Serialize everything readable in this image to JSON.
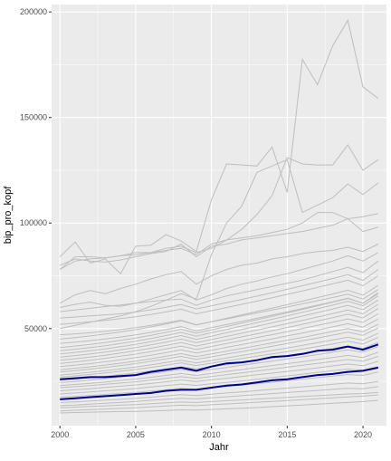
{
  "chart_data": {
    "type": "line",
    "title": "",
    "xlabel": "Jahr",
    "ylabel": "bip_pro_kopf",
    "x": [
      2000,
      2001,
      2002,
      2003,
      2004,
      2005,
      2006,
      2007,
      2008,
      2009,
      2010,
      2011,
      2012,
      2013,
      2014,
      2015,
      2016,
      2017,
      2018,
      2019,
      2020,
      2021
    ],
    "xlim": [
      1999.45,
      2021.55
    ],
    "ylim": [
      4000,
      203500
    ],
    "x_ticks": [
      2000,
      2005,
      2010,
      2015,
      2020
    ],
    "x_tick_labels": [
      "2000",
      "2005",
      "2010",
      "2015",
      "2020"
    ],
    "y_ticks": [
      50000,
      100000,
      150000,
      200000
    ],
    "y_tick_labels": [
      "50000",
      "100000",
      "150000",
      "200000"
    ],
    "grid": true,
    "legend": "none",
    "background_color": "#ebebeb",
    "gray_line_color": "#bebebe",
    "highlight_color": "#00008b",
    "highlight_series": [
      {
        "values": [
          26000,
          26500,
          27000,
          27000,
          27500,
          28000,
          29500,
          30500,
          31500,
          30000,
          32000,
          33500,
          34000,
          35000,
          36500,
          37000,
          38000,
          39500,
          40000,
          41500,
          40000,
          42500
        ]
      },
      {
        "values": [
          16500,
          17000,
          17500,
          18000,
          18500,
          19000,
          19500,
          20500,
          21000,
          21000,
          22000,
          23000,
          23500,
          24500,
          25500,
          26000,
          27000,
          28000,
          28500,
          29500,
          30000,
          31500
        ]
      }
    ],
    "gray_series": [
      {
        "values": [
          10000,
          10200,
          10400,
          10500,
          10700,
          10800,
          11000,
          11200,
          11500,
          11400,
          11700,
          12000,
          12300,
          12600,
          13000,
          13400,
          13800,
          14200,
          14600,
          15000,
          15400,
          16000
        ]
      },
      {
        "values": [
          11000,
          11300,
          11600,
          11900,
          12200,
          12500,
          12900,
          13300,
          13700,
          13500,
          13900,
          14300,
          14700,
          15100,
          15500,
          15900,
          16300,
          16800,
          17200,
          17600,
          18000,
          18600
        ]
      },
      {
        "values": [
          12500,
          12800,
          13100,
          13400,
          13700,
          14000,
          14400,
          14800,
          15200,
          15000,
          15400,
          15800,
          16200,
          16600,
          17000,
          17400,
          17800,
          18200,
          18600,
          19000,
          19200,
          19800
        ]
      },
      {
        "values": [
          13500,
          13800,
          14200,
          14600,
          15000,
          15500,
          16000,
          16500,
          17000,
          16700,
          17200,
          17700,
          18200,
          18700,
          19200,
          19700,
          20200,
          20700,
          21200,
          21700,
          21500,
          22500
        ]
      },
      {
        "values": [
          15000,
          15300,
          15700,
          16100,
          16500,
          17000,
          17500,
          18100,
          18700,
          18300,
          18900,
          19500,
          20000,
          20600,
          21200,
          21800,
          22400,
          23000,
          23600,
          24200,
          23800,
          25000
        ]
      },
      {
        "values": [
          17500,
          17900,
          18300,
          18800,
          19300,
          19800,
          20400,
          21000,
          21700,
          21200,
          21900,
          22600,
          23200,
          23900,
          24600,
          25300,
          26000,
          26800,
          27500,
          28200,
          27800,
          29500
        ]
      },
      {
        "values": [
          19000,
          19500,
          20000,
          20500,
          21000,
          21600,
          22300,
          23000,
          23700,
          23100,
          23800,
          24500,
          25200,
          26000,
          26800,
          27600,
          28400,
          29200,
          30000,
          30800,
          30200,
          32000
        ]
      },
      {
        "values": [
          20500,
          21000,
          21500,
          22100,
          22700,
          23300,
          24000,
          24800,
          25600,
          24900,
          25700,
          26500,
          27300,
          28100,
          28900,
          29700,
          30500,
          31400,
          32300,
          33200,
          32400,
          34500
        ]
      },
      {
        "values": [
          22000,
          22500,
          23000,
          23600,
          24200,
          24800,
          25600,
          26400,
          27200,
          26400,
          27300,
          28200,
          29000,
          29900,
          30800,
          31700,
          32600,
          33500,
          34400,
          35300,
          34500,
          36800
        ]
      },
      {
        "values": [
          23000,
          23500,
          24100,
          24700,
          25400,
          26100,
          26900,
          27800,
          28700,
          27800,
          28700,
          29700,
          30600,
          31500,
          32500,
          33400,
          34300,
          35300,
          36300,
          37300,
          36300,
          38800
        ]
      },
      {
        "values": [
          24500,
          25000,
          25600,
          26300,
          27000,
          27800,
          28700,
          29600,
          30600,
          29600,
          30600,
          31600,
          32600,
          33600,
          34600,
          35600,
          36600,
          37700,
          38800,
          39900,
          38800,
          41500
        ]
      },
      {
        "values": [
          25500,
          26100,
          26700,
          27400,
          28200,
          29000,
          29900,
          30900,
          31900,
          30900,
          31900,
          32900,
          33900,
          35000,
          36100,
          37200,
          38300,
          39400,
          40600,
          41800,
          40600,
          43500
        ]
      },
      {
        "values": [
          27000,
          27600,
          28300,
          29000,
          29800,
          30600,
          31600,
          32600,
          33700,
          32500,
          33600,
          34700,
          35800,
          36900,
          38000,
          39100,
          40300,
          41500,
          42700,
          44000,
          42700,
          45800
        ]
      },
      {
        "values": [
          28000,
          28600,
          29300,
          30100,
          30900,
          31800,
          32800,
          33900,
          35000,
          33700,
          34900,
          36100,
          37300,
          38400,
          39600,
          40800,
          42000,
          43300,
          44600,
          45900,
          44500,
          47800
        ]
      },
      {
        "values": [
          29500,
          30100,
          30800,
          31600,
          32500,
          33400,
          34500,
          35600,
          36800,
          35400,
          36600,
          37900,
          39100,
          40400,
          41600,
          42900,
          44200,
          45500,
          46900,
          48300,
          46800,
          50300
        ]
      },
      {
        "values": [
          30500,
          31200,
          31900,
          32700,
          33600,
          34600,
          35700,
          36900,
          38100,
          36700,
          38000,
          39300,
          40600,
          41900,
          43200,
          44500,
          45800,
          47200,
          48600,
          50000,
          48500,
          52000
        ]
      },
      {
        "values": [
          32000,
          32700,
          33400,
          34300,
          35200,
          36200,
          37400,
          38600,
          39900,
          38400,
          39700,
          41100,
          42400,
          43800,
          45100,
          46500,
          47900,
          49300,
          50800,
          52300,
          50700,
          54500
        ]
      },
      {
        "values": [
          33500,
          34200,
          35000,
          35900,
          36900,
          37900,
          39100,
          40400,
          41700,
          40100,
          41500,
          42900,
          44300,
          45700,
          47100,
          48500,
          50000,
          51500,
          53000,
          54600,
          52900,
          57000
        ]
      },
      {
        "values": [
          35000,
          35700,
          36500,
          37400,
          38400,
          39500,
          40700,
          42000,
          43400,
          41700,
          43200,
          44600,
          46100,
          47500,
          49000,
          50500,
          52000,
          53600,
          55200,
          56800,
          55000,
          59500
        ]
      },
      {
        "values": [
          36500,
          37200,
          38000,
          38900,
          39900,
          41000,
          42300,
          43600,
          45000,
          43300,
          44800,
          46300,
          47800,
          49300,
          50800,
          52300,
          53900,
          55500,
          57100,
          58800,
          57000,
          61500
        ]
      },
      {
        "values": [
          38000,
          38700,
          39500,
          40400,
          41400,
          42500,
          43800,
          45200,
          46700,
          44900,
          46400,
          48000,
          49600,
          51100,
          52700,
          54300,
          55900,
          57600,
          59300,
          61000,
          59000,
          63500
        ]
      },
      {
        "values": [
          39500,
          40200,
          41000,
          41900,
          42900,
          44000,
          45300,
          46700,
          48200,
          46400,
          48000,
          49600,
          51200,
          52800,
          54400,
          56000,
          57700,
          59400,
          61100,
          62900,
          60800,
          65500
        ]
      },
      {
        "values": [
          41000,
          41700,
          42500,
          43400,
          44400,
          45500,
          46800,
          48200,
          49700,
          47800,
          49400,
          51000,
          52600,
          54200,
          55800,
          57400,
          59100,
          60800,
          62500,
          64300,
          62000,
          67000
        ]
      },
      {
        "values": [
          43000,
          43600,
          44300,
          45100,
          46000,
          47000,
          48200,
          49500,
          50900,
          48900,
          50400,
          51900,
          53400,
          54900,
          56400,
          57900,
          59500,
          61100,
          62700,
          64400,
          62000,
          66500
        ]
      },
      {
        "values": [
          45000,
          45700,
          46500,
          47400,
          48400,
          49500,
          50800,
          52200,
          53700,
          51700,
          53300,
          54900,
          56500,
          58100,
          59700,
          61300,
          63000,
          64700,
          66400,
          68200,
          65800,
          70500
        ]
      },
      {
        "values": [
          47000,
          47500,
          48000,
          48700,
          49500,
          50400,
          51500,
          52700,
          54000,
          51800,
          53200,
          54600,
          56000,
          57400,
          58800,
          60200,
          61700,
          63200,
          64700,
          66300,
          64000,
          68500
        ]
      },
      {
        "values": [
          52000,
          52600,
          53200,
          53900,
          54700,
          55600,
          56700,
          57900,
          59200,
          57000,
          58500,
          60000,
          61500,
          63000,
          64600,
          66200,
          67800,
          69500,
          71200,
          72900,
          70300,
          75000
        ]
      },
      {
        "values": [
          55000,
          55500,
          56000,
          56500,
          57000,
          57800,
          58900,
          60100,
          61400,
          59300,
          60800,
          62300,
          63800,
          65400,
          67000,
          68600,
          70300,
          72000,
          73700,
          75500,
          72800,
          78000
        ]
      },
      {
        "values": [
          58000,
          58800,
          59600,
          60400,
          61200,
          62000,
          62800,
          63500,
          64000,
          61000,
          63500,
          65500,
          67000,
          68500,
          70000,
          71500,
          73000,
          75000,
          77000,
          79000,
          76500,
          82000
        ]
      },
      {
        "values": [
          60000,
          61500,
          62500,
          61000,
          60500,
          62000,
          64000,
          66000,
          68000,
          63500,
          66000,
          69000,
          71000,
          72500,
          74500,
          76000,
          78000,
          80000,
          82000,
          84500,
          82000,
          86000
        ]
      },
      {
        "values": [
          62000,
          66000,
          68000,
          66500,
          69000,
          71000,
          73500,
          75500,
          77000,
          71000,
          75000,
          78000,
          80000,
          81000,
          83000,
          84000,
          85500,
          86500,
          87000,
          88500,
          86500,
          90000
        ]
      },
      {
        "values": [
          78000,
          84000,
          84000,
          83500,
          84500,
          85000,
          86000,
          87000,
          88000,
          85000,
          90000,
          92000,
          93000,
          94000,
          95500,
          97000,
          100000,
          105000,
          105000,
          102000,
          96000,
          98000
        ]
      },
      {
        "values": [
          80000,
          83000,
          82000,
          81500,
          82500,
          84000,
          85500,
          86500,
          90000,
          84000,
          89000,
          90000,
          92000,
          93000,
          94000,
          95000,
          96000,
          97500,
          99000,
          102000,
          103000,
          104500
        ]
      },
      {
        "values": [
          84000,
          91000,
          81000,
          83000,
          76000,
          89000,
          89500,
          94500,
          91500,
          86500,
          111000,
          128000,
          127500,
          127000,
          136000,
          114500,
          177500,
          165500,
          184000,
          196000,
          164500,
          159000
        ]
      },
      {
        "values": [
          78000,
          82000,
          83000,
          83500,
          84500,
          86000,
          86000,
          88000,
          89000,
          86000,
          88000,
          92000,
          97000,
          104000,
          113000,
          131000,
          128000,
          127500,
          127500,
          137000,
          125000,
          130000
        ]
      },
      {
        "values": [
          50000,
          51500,
          53000,
          54500,
          56000,
          58000,
          60500,
          63500,
          66500,
          64000,
          85000,
          100000,
          108000,
          124000,
          127000,
          130000,
          105000,
          108500,
          112000,
          118500,
          113500,
          119000
        ]
      }
    ]
  }
}
